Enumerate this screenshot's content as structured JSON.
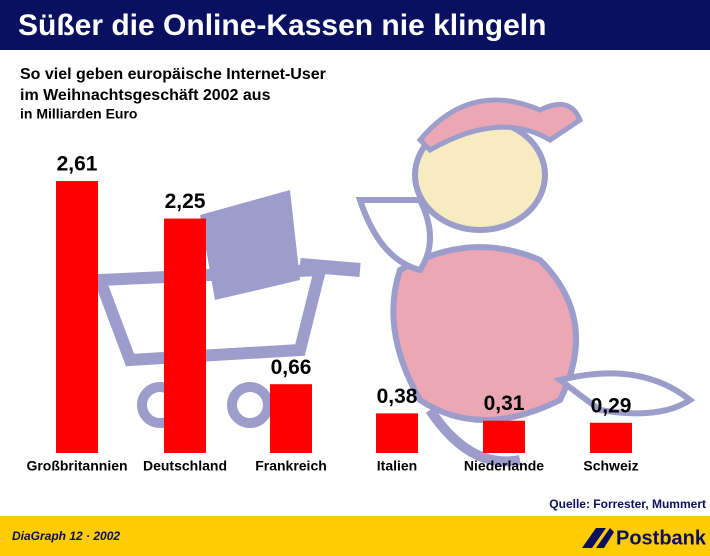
{
  "chart_data": {
    "type": "bar",
    "title": "Süßer die Online-Kassen nie klingeln",
    "subtitle": [
      "So viel geben europäische Internet-User",
      "im Weihnachtsgeschäft 2002 aus",
      "in Milliarden Euro"
    ],
    "categories": [
      "Großbritannien",
      "Deutschland",
      "Frankreich",
      "Italien",
      "Niederlande",
      "Schweiz"
    ],
    "values": [
      2.61,
      2.25,
      0.66,
      0.38,
      0.31,
      0.29
    ],
    "value_labels": [
      "2,61",
      "2,25",
      "0,66",
      "0,38",
      "0,31",
      "0,29"
    ],
    "color": "#ff0000",
    "source": "Quelle: Forrester, Mummert",
    "footer": "DiaGraph 12 · 2002",
    "brand": "Postbank"
  }
}
